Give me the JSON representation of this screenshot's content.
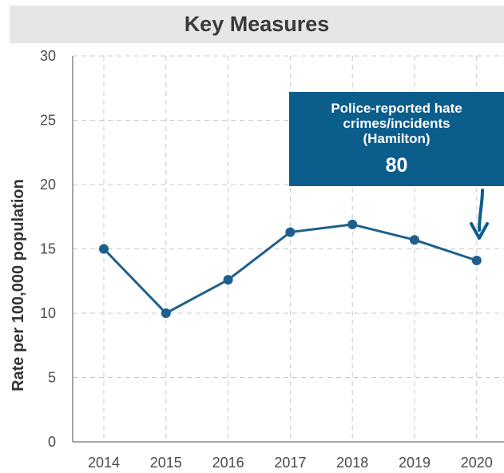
{
  "header": {
    "title": "Key Measures"
  },
  "callout": {
    "label": "Police-reported hate crimes/incidents (Hamilton)",
    "value": "80"
  },
  "colors": {
    "line": "#1f5f8b",
    "callout_bg": "#0b5d8c",
    "header_bg": "#e6e6e6",
    "grid": "#c8c8c8"
  },
  "chart_data": {
    "type": "line",
    "title": "",
    "xlabel": "",
    "ylabel": "Rate per 100,000 population",
    "categories": [
      "2014",
      "2015",
      "2016",
      "2017",
      "2018",
      "2019",
      "2020"
    ],
    "series": [
      {
        "values": [
          15.0,
          10.0,
          12.6,
          16.3,
          16.9,
          15.7,
          14.1
        ]
      }
    ],
    "ylim": [
      0,
      30
    ],
    "yticks": [
      "0",
      "5",
      "10",
      "15",
      "20",
      "25",
      "30"
    ],
    "grid": true,
    "grid_style": "dashed"
  }
}
